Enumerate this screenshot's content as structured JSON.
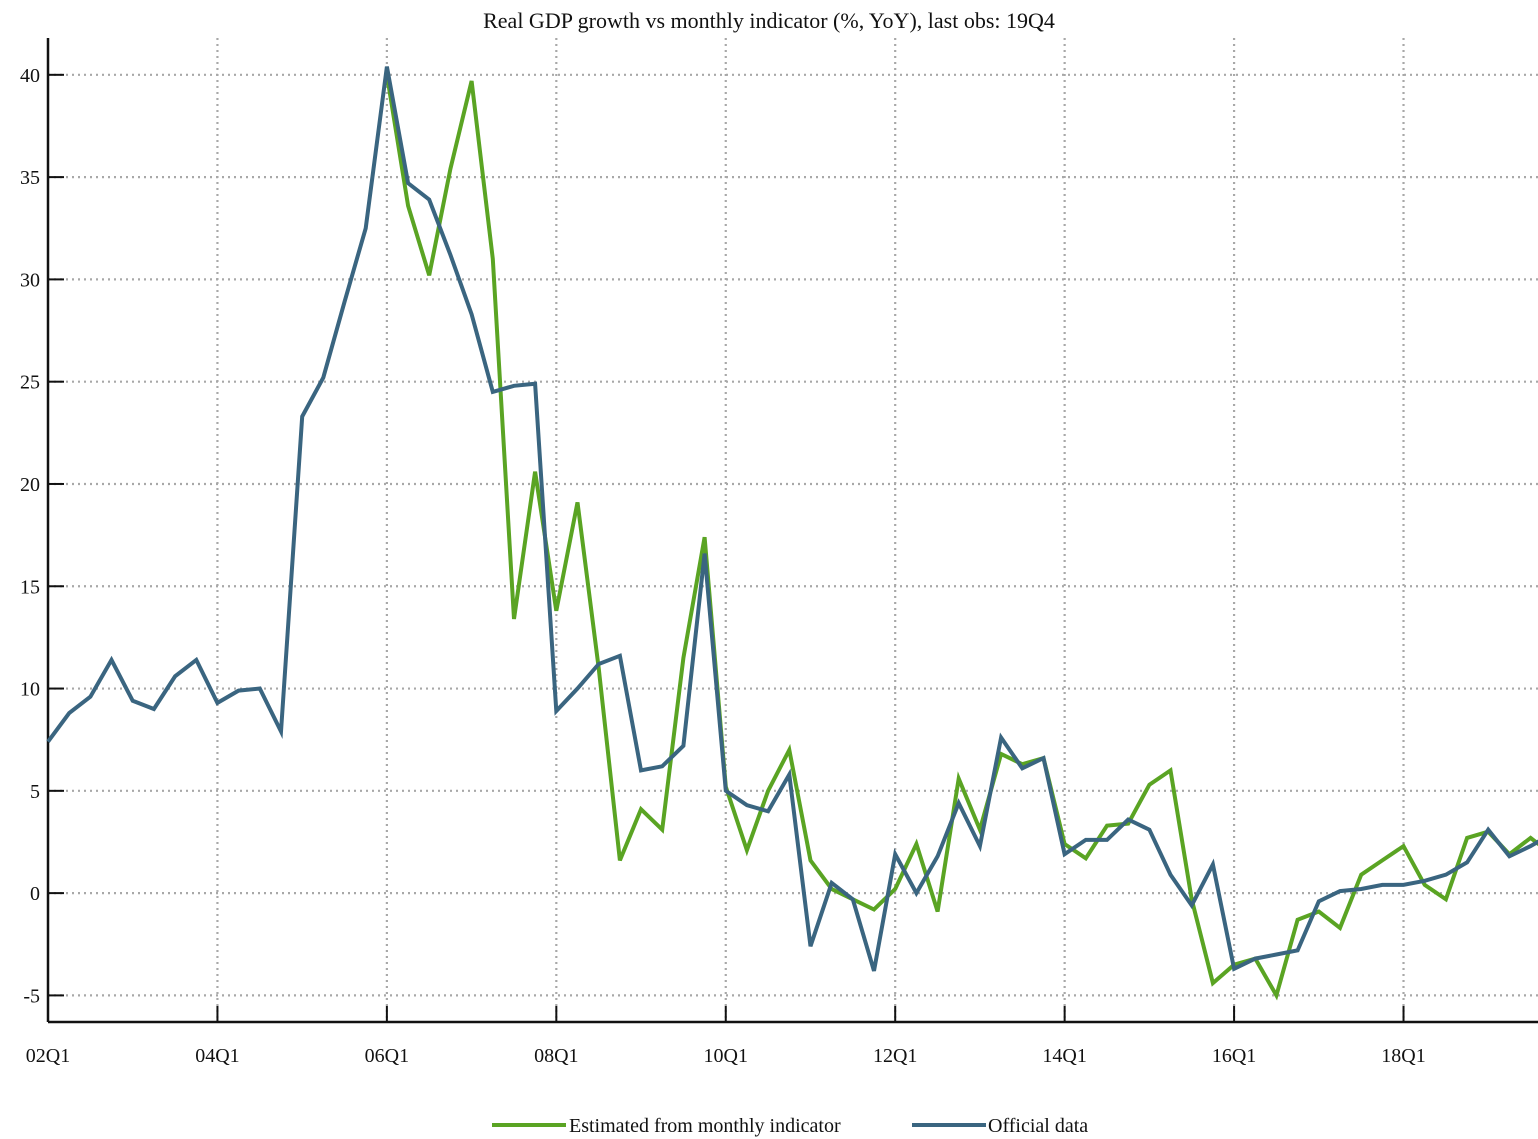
{
  "chart_data": {
    "type": "line",
    "title": "Real GDP growth vs monthly indicator (%, YoY), last obs: 19Q4",
    "xlabel": "",
    "ylabel": "",
    "x_tick_labels": [
      "02Q1",
      "04Q1",
      "06Q1",
      "08Q1",
      "10Q1",
      "12Q1",
      "14Q1",
      "16Q1",
      "18Q1"
    ],
    "y_ticks": [
      -5,
      0,
      5,
      10,
      15,
      20,
      25,
      30,
      35,
      40
    ],
    "y_tick_labels": [
      "-5",
      "0",
      "5",
      "10",
      "15",
      "20",
      "25",
      "30",
      "35",
      "40"
    ],
    "ylim": [
      -6.3,
      41.8
    ],
    "grid": true,
    "legend_position": "bottom-center",
    "x": [
      "02Q1",
      "02Q2",
      "02Q3",
      "02Q4",
      "03Q1",
      "03Q2",
      "03Q3",
      "03Q4",
      "04Q1",
      "04Q2",
      "04Q3",
      "04Q4",
      "05Q1",
      "05Q2",
      "05Q3",
      "05Q4",
      "06Q1",
      "06Q2",
      "06Q3",
      "06Q4",
      "07Q1",
      "07Q2",
      "07Q3",
      "07Q4",
      "08Q1",
      "08Q2",
      "08Q3",
      "08Q4",
      "09Q1",
      "09Q2",
      "09Q3",
      "09Q4",
      "10Q1",
      "10Q2",
      "10Q3",
      "10Q4",
      "11Q1",
      "11Q2",
      "11Q3",
      "11Q4",
      "12Q1",
      "12Q2",
      "12Q3",
      "12Q4",
      "13Q1",
      "13Q2",
      "13Q3",
      "13Q4",
      "14Q1",
      "14Q2",
      "14Q3",
      "14Q4",
      "15Q1",
      "15Q2",
      "15Q3",
      "15Q4",
      "16Q1",
      "16Q2",
      "16Q3",
      "16Q4",
      "17Q1",
      "17Q2",
      "17Q3",
      "17Q4",
      "18Q1",
      "18Q2",
      "18Q3",
      "18Q4",
      "19Q1",
      "19Q2",
      "19Q3",
      "19Q4"
    ],
    "series": [
      {
        "name": "Estimated from monthly indicator",
        "color": "#5aa423",
        "values": [
          null,
          null,
          null,
          null,
          null,
          null,
          null,
          null,
          null,
          null,
          null,
          null,
          null,
          null,
          null,
          null,
          40.0,
          33.6,
          30.2,
          35.4,
          39.7,
          31.0,
          13.4,
          20.6,
          13.8,
          19.1,
          11.0,
          1.6,
          4.1,
          3.1,
          11.5,
          17.4,
          5.2,
          2.1,
          5.0,
          7.0,
          1.6,
          0.2,
          -0.3,
          -0.8,
          0.2,
          2.4,
          -0.9,
          5.6,
          3.1,
          6.8,
          6.3,
          6.6,
          2.4,
          1.7,
          3.3,
          3.4,
          5.3,
          6.0,
          -0.3,
          -4.4,
          -3.5,
          -3.2,
          -5.0,
          -1.3,
          -0.9,
          -1.7,
          0.9,
          1.6,
          2.3,
          0.4,
          -0.3,
          2.7,
          3.0,
          1.9,
          2.7,
          1.9
        ]
      },
      {
        "name": "Official data",
        "color": "#3a6580",
        "values": [
          7.4,
          8.8,
          9.6,
          11.4,
          9.4,
          9.0,
          10.6,
          11.4,
          9.3,
          9.9,
          10.0,
          7.9,
          23.3,
          25.2,
          28.9,
          32.5,
          40.4,
          34.7,
          33.9,
          31.2,
          28.3,
          24.5,
          24.8,
          24.9,
          8.9,
          10.0,
          11.2,
          11.6,
          6.0,
          6.2,
          7.2,
          16.6,
          5.0,
          4.3,
          4.0,
          5.8,
          -2.6,
          0.5,
          -0.3,
          -3.8,
          1.9,
          0.0,
          1.8,
          4.4,
          2.3,
          7.6,
          6.1,
          6.6,
          1.9,
          2.6,
          2.6,
          3.6,
          3.1,
          0.9,
          -0.6,
          1.4,
          -3.7,
          -3.2,
          -3.0,
          -2.8,
          -0.4,
          0.1,
          0.2,
          0.4,
          0.4,
          0.6,
          0.9,
          1.5,
          3.1,
          1.8,
          2.3,
          2.9
        ]
      }
    ]
  }
}
